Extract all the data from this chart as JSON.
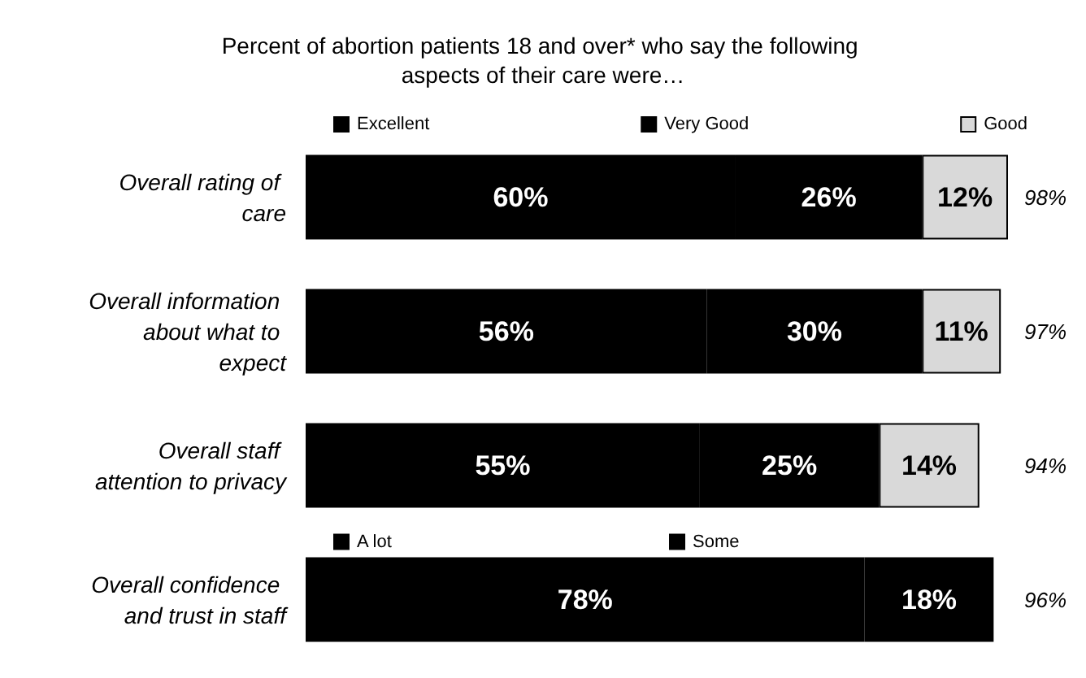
{
  "chart_data": {
    "type": "bar",
    "orientation": "horizontal",
    "stacked": true,
    "title": "Percent of abortion patients 18 and over* who say the following aspects of their care were…",
    "categories": [
      "Overall rating of care",
      "Overall information about what to expect",
      "Overall staff attention to privacy",
      "Overall confidence and trust in staff"
    ],
    "series": [
      {
        "name": "Excellent",
        "color": "#000000",
        "values": [
          60,
          56,
          55,
          null
        ],
        "value_labels": [
          "60%",
          "56%",
          "55%",
          null
        ]
      },
      {
        "name": "Very Good",
        "color": "#000000",
        "values": [
          26,
          30,
          25,
          null
        ],
        "value_labels": [
          "26%",
          "30%",
          "25%",
          null
        ]
      },
      {
        "name": "Good",
        "color": "#d9d9d9",
        "values": [
          12,
          11,
          14,
          null
        ],
        "value_labels": [
          "12%",
          "11%",
          "14%",
          null
        ]
      },
      {
        "name": "A lot",
        "color": "#000000",
        "values": [
          null,
          null,
          null,
          78
        ],
        "value_labels": [
          null,
          null,
          null,
          "78%"
        ]
      },
      {
        "name": "Some",
        "color": "#000000",
        "values": [
          null,
          null,
          null,
          18
        ],
        "value_labels": [
          null,
          null,
          null,
          "18%"
        ]
      }
    ],
    "totals": [
      "98%",
      "97%",
      "94%",
      "96%"
    ],
    "legend": "top"
  }
}
